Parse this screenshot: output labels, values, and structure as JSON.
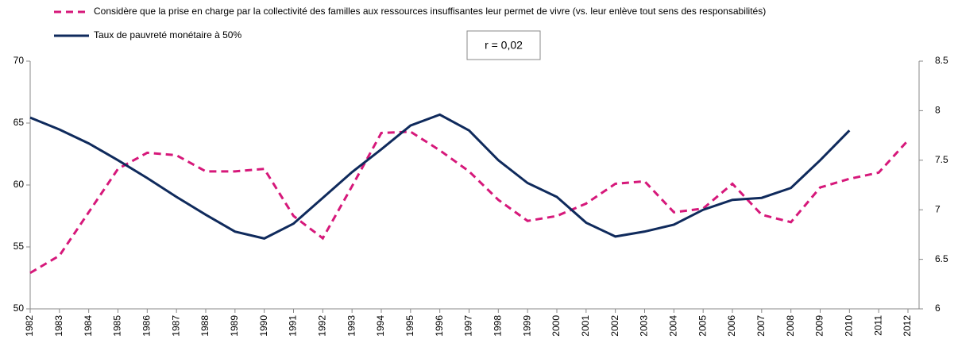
{
  "chart_data": {
    "type": "line",
    "annotation": "r = 0,02",
    "categories": [
      "1982",
      "1983",
      "1984",
      "1985",
      "1986",
      "1987",
      "1988",
      "1989",
      "1990",
      "1991",
      "1992",
      "1993",
      "1994",
      "1995",
      "1996",
      "1997",
      "1998",
      "1999",
      "2000",
      "2001",
      "2002",
      "2003",
      "2004",
      "2005",
      "2006",
      "2007",
      "2008",
      "2009",
      "2010",
      "2011",
      "2012"
    ],
    "series": [
      {
        "name": "Considère que la prise en charge par la collectivité des familles aux ressources insuffisantes leur permet de vivre (vs. leur enlève tout sens des responsabilités)",
        "color": "#d6187a",
        "dashed": true,
        "values": [
          52.9,
          54.3,
          57.8,
          61.3,
          62.6,
          62.4,
          61.1,
          61.1,
          61.3,
          57.5,
          55.7,
          59.9,
          64.2,
          64.3,
          62.8,
          61.1,
          58.8,
          57.1,
          57.5,
          58.5,
          60.1,
          60.3,
          57.8,
          58.1,
          60.1,
          57.6,
          57.0,
          59.8,
          60.5,
          61.0,
          63.6
        ]
      },
      {
        "name": "Taux de pauvreté monétaire à 50%",
        "color": "#0f2a5c",
        "axis": "y2",
        "values": [
          7.93,
          7.81,
          7.67,
          7.5,
          7.32,
          7.13,
          6.95,
          6.78,
          6.71,
          6.86,
          7.12,
          7.38,
          7.61,
          7.85,
          7.96,
          7.8,
          7.5,
          7.27,
          7.13,
          6.87,
          6.73,
          6.78,
          6.85,
          7.0,
          7.1,
          7.12,
          7.22,
          7.5,
          7.8,
          null,
          null
        ]
      }
    ],
    "ylim": [
      50,
      70
    ],
    "yticks": [
      50,
      55,
      60,
      65,
      70
    ],
    "y2lim": [
      6,
      8.5
    ],
    "y2ticks": [
      6,
      6.5,
      7,
      7.5,
      8,
      8.5
    ]
  }
}
